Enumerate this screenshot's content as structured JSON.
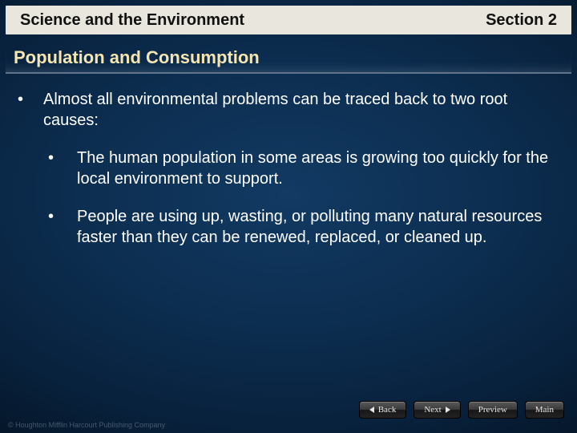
{
  "header": {
    "left": "Science and the Environment",
    "right": "Section 2"
  },
  "subtitle": "Population and Consumption",
  "body": {
    "level1": [
      {
        "bullet": "•",
        "text": "Almost all environmental problems can be traced back to two root causes:"
      }
    ],
    "level2": [
      {
        "bullet": "•",
        "text": "The human population in some areas is growing too quickly for the local environment to support."
      },
      {
        "bullet": "•",
        "text": "People are using up, wasting, or polluting many natural resources faster than they can be renewed, replaced, or cleaned up."
      }
    ]
  },
  "nav": {
    "back": "Back",
    "next": "Next",
    "preview": "Preview",
    "main": "Main"
  },
  "copyright": "© Houghton Mifflin Harcourt Publishing Company",
  "colors": {
    "banner_bg": "#e9e6dd",
    "banner_text": "#111111",
    "subtitle_text": "#f5e6b1",
    "body_text": "#ffffff",
    "bg_center": "#123a63",
    "bg_edge": "#010810",
    "nav_text": "#e6e6e6"
  },
  "fonts": {
    "header_size_pt": 15,
    "subtitle_size_pt": 17,
    "body_size_pt": 15,
    "nav_size_pt": 8,
    "copyright_size_pt": 7
  }
}
